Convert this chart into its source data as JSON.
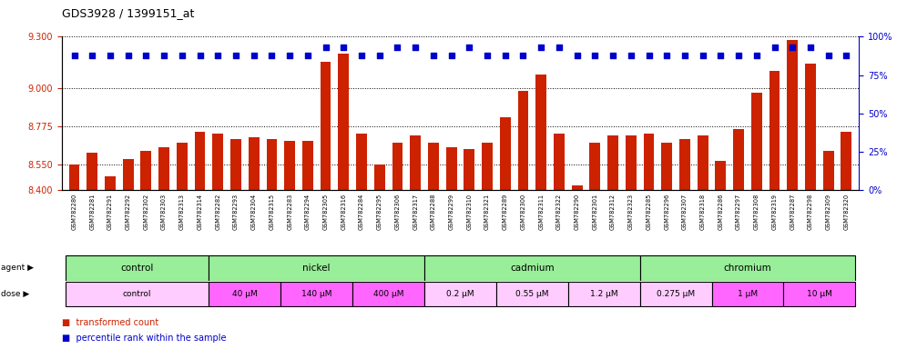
{
  "title": "GDS3928 / 1399151_at",
  "samples": [
    "GSM782280",
    "GSM782281",
    "GSM782291",
    "GSM782292",
    "GSM782302",
    "GSM782303",
    "GSM782313",
    "GSM782314",
    "GSM782282",
    "GSM782293",
    "GSM782304",
    "GSM782315",
    "GSM782283",
    "GSM782294",
    "GSM782305",
    "GSM782316",
    "GSM782284",
    "GSM782295",
    "GSM782306",
    "GSM782317",
    "GSM782288",
    "GSM782299",
    "GSM782310",
    "GSM782321",
    "GSM782289",
    "GSM782300",
    "GSM782311",
    "GSM782322",
    "GSM782290",
    "GSM782301",
    "GSM782312",
    "GSM782323",
    "GSM782285",
    "GSM782296",
    "GSM782307",
    "GSM782318",
    "GSM782286",
    "GSM782297",
    "GSM782308",
    "GSM782319",
    "GSM782287",
    "GSM782298",
    "GSM782309",
    "GSM782320"
  ],
  "bar_values": [
    8.55,
    8.62,
    8.48,
    8.58,
    8.63,
    8.65,
    8.68,
    8.74,
    8.73,
    8.7,
    8.71,
    8.7,
    8.69,
    8.69,
    9.15,
    9.2,
    8.73,
    8.55,
    8.68,
    8.72,
    8.68,
    8.65,
    8.64,
    8.68,
    8.83,
    8.98,
    9.08,
    8.73,
    8.43,
    8.68,
    8.72,
    8.72,
    8.73,
    8.68,
    8.7,
    8.72,
    8.57,
    8.76,
    8.97,
    9.1,
    9.28,
    9.14,
    8.63,
    8.74
  ],
  "percentile_values": [
    88,
    88,
    88,
    88,
    88,
    88,
    88,
    88,
    88,
    88,
    88,
    88,
    88,
    88,
    93,
    93,
    88,
    88,
    93,
    93,
    88,
    88,
    93,
    88,
    88,
    88,
    93,
    93,
    88,
    88,
    88,
    88,
    88,
    88,
    88,
    88,
    88,
    88,
    88,
    93,
    93,
    93,
    88,
    88
  ],
  "ylim_left": [
    8.4,
    9.3
  ],
  "ylim_right": [
    0,
    100
  ],
  "yticks_left": [
    8.4,
    8.55,
    8.775,
    9.0,
    9.3
  ],
  "yticks_right": [
    0,
    25,
    50,
    75,
    100
  ],
  "bar_color": "#CC2200",
  "dot_color": "#0000CC",
  "background_color": "#ffffff",
  "agent_groups": [
    {
      "label": "control",
      "start": 0,
      "end": 8,
      "color": "#99EE99"
    },
    {
      "label": "nickel",
      "start": 8,
      "end": 20,
      "color": "#99EE99"
    },
    {
      "label": "cadmium",
      "start": 20,
      "end": 32,
      "color": "#99EE99"
    },
    {
      "label": "chromium",
      "start": 32,
      "end": 44,
      "color": "#99EE99"
    }
  ],
  "dose_groups": [
    {
      "label": "control",
      "start": 0,
      "end": 8,
      "color": "#FFCCFF"
    },
    {
      "label": "40 μM",
      "start": 8,
      "end": 12,
      "color": "#FF66FF"
    },
    {
      "label": "140 μM",
      "start": 12,
      "end": 16,
      "color": "#FF66FF"
    },
    {
      "label": "400 μM",
      "start": 16,
      "end": 20,
      "color": "#FF66FF"
    },
    {
      "label": "0.2 μM",
      "start": 20,
      "end": 24,
      "color": "#FFCCFF"
    },
    {
      "label": "0.55 μM",
      "start": 24,
      "end": 28,
      "color": "#FFCCFF"
    },
    {
      "label": "1.2 μM",
      "start": 28,
      "end": 32,
      "color": "#FFCCFF"
    },
    {
      "label": "0.275 μM",
      "start": 32,
      "end": 36,
      "color": "#FFCCFF"
    },
    {
      "label": "1 μM",
      "start": 36,
      "end": 40,
      "color": "#FF66FF"
    },
    {
      "label": "10 μM",
      "start": 40,
      "end": 44,
      "color": "#FF66FF"
    }
  ]
}
